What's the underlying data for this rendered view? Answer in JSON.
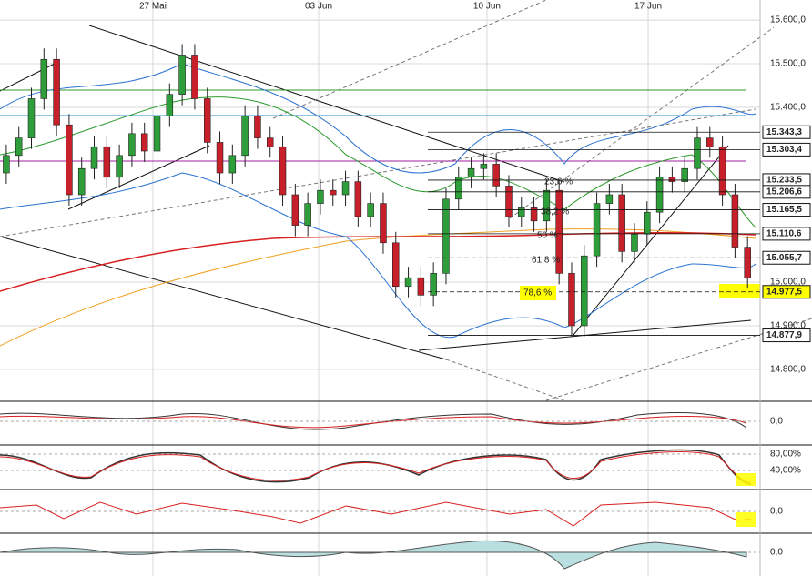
{
  "chart_data": {
    "type": "candlestick",
    "xlim": [
      -0.5,
      60.0
    ],
    "xticks": [
      {
        "value": 11.67,
        "label": "27 Mai"
      },
      {
        "value": 24.86,
        "label": "03 Jun"
      },
      {
        "value": 38.26,
        "label": "10 Jun"
      },
      {
        "value": 51.09,
        "label": "17 Jun"
      }
    ],
    "ylim": [
      14729,
      15646
    ],
    "yticks": [
      {
        "value": 15600,
        "label": "15.600,0"
      },
      {
        "value": 15500,
        "label": "15.500,0"
      },
      {
        "value": 15400,
        "label": "15.400,0"
      },
      {
        "value": 15000,
        "label": "15.000,0"
      },
      {
        "value": 14900,
        "label": "14.900,0"
      },
      {
        "value": 14800,
        "label": "14.800,0"
      }
    ],
    "grid": true,
    "up_color": "#2e9e3a",
    "down_color": "#c8202a",
    "open": [
      15250,
      15290,
      15330,
      15420,
      15510,
      15360,
      15200,
      15260,
      15310,
      15240,
      15290,
      15340,
      15300,
      15380,
      15430,
      15520,
      15420,
      15320,
      15250,
      15290,
      15380,
      15330,
      15310,
      15200,
      15130,
      15180,
      15210,
      15200,
      15230,
      15150,
      15180,
      15090,
      14990,
      15010,
      14970,
      15020,
      15190,
      15240,
      15260,
      15270,
      15220,
      15150,
      15170,
      15140,
      15210,
      15020,
      14900,
      15060,
      15180,
      15200,
      15070,
      15110,
      15160,
      15240,
      15230,
      15260,
      15330,
      15310,
      15200,
      15080
    ],
    "high": [
      15315,
      15355,
      15445,
      15535,
      15535,
      15385,
      15285,
      15335,
      15335,
      15315,
      15365,
      15365,
      15405,
      15455,
      15545,
      15545,
      15445,
      15345,
      15315,
      15405,
      15405,
      15355,
      15335,
      15225,
      15205,
      15235,
      15235,
      15255,
      15255,
      15205,
      15205,
      15115,
      15035,
      15035,
      15045,
      15215,
      15265,
      15285,
      15295,
      15295,
      15245,
      15195,
      15195,
      15235,
      15235,
      15045,
      15085,
      15205,
      15225,
      15225,
      15135,
      15185,
      15265,
      15265,
      15285,
      15355,
      15355,
      15335,
      15225,
      15105
    ],
    "low": [
      15225,
      15265,
      15305,
      15395,
      15335,
      15175,
      15175,
      15235,
      15215,
      15215,
      15265,
      15275,
      15275,
      15355,
      15405,
      15395,
      15295,
      15225,
      15225,
      15265,
      15305,
      15285,
      15175,
      15105,
      15105,
      15155,
      15175,
      15175,
      15125,
      15125,
      15065,
      14965,
      14965,
      14945,
      14945,
      14995,
      15165,
      15215,
      15235,
      15195,
      15125,
      15125,
      15115,
      15115,
      14995,
      14875,
      14875,
      15035,
      15155,
      15045,
      15045,
      15085,
      15135,
      15205,
      15205,
      15235,
      15285,
      15175,
      15055,
      14985
    ],
    "close": [
      15290,
      15330,
      15420,
      15510,
      15360,
      15200,
      15260,
      15310,
      15240,
      15290,
      15340,
      15300,
      15380,
      15430,
      15520,
      15420,
      15320,
      15250,
      15290,
      15380,
      15330,
      15310,
      15200,
      15130,
      15180,
      15210,
      15200,
      15230,
      15150,
      15180,
      15090,
      14990,
      15010,
      14970,
      15020,
      15190,
      15240,
      15260,
      15270,
      15220,
      15150,
      15170,
      15140,
      15210,
      15020,
      14900,
      15060,
      15180,
      15200,
      15070,
      15110,
      15160,
      15240,
      15230,
      15260,
      15330,
      15310,
      15200,
      15080,
      15010
    ],
    "levels": [
      {
        "value": 15343.3,
        "label": "15.343,3"
      },
      {
        "value": 15303.4,
        "label": "15.303,4"
      },
      {
        "value": 15233.5,
        "label": "15.233,5"
      },
      {
        "value": 15206.6,
        "label": "15.206,6"
      },
      {
        "value": 15165.5,
        "label": "15.165,5"
      },
      {
        "value": 15110.6,
        "label": "15.110,6"
      },
      {
        "value": 15055.7,
        "label": "15.055,7"
      },
      {
        "value": 14977.5,
        "label": "14.977,5"
      },
      {
        "value": 14877.9,
        "label": "14.877,9"
      }
    ],
    "fib_labels": [
      "23,6 %",
      "38,2 %",
      "50 %",
      "61,8 %",
      "78,6 %"
    ],
    "indicator_labels": [
      "0,0",
      "80,00%",
      "40,00%",
      "0,0",
      "0,0"
    ]
  }
}
